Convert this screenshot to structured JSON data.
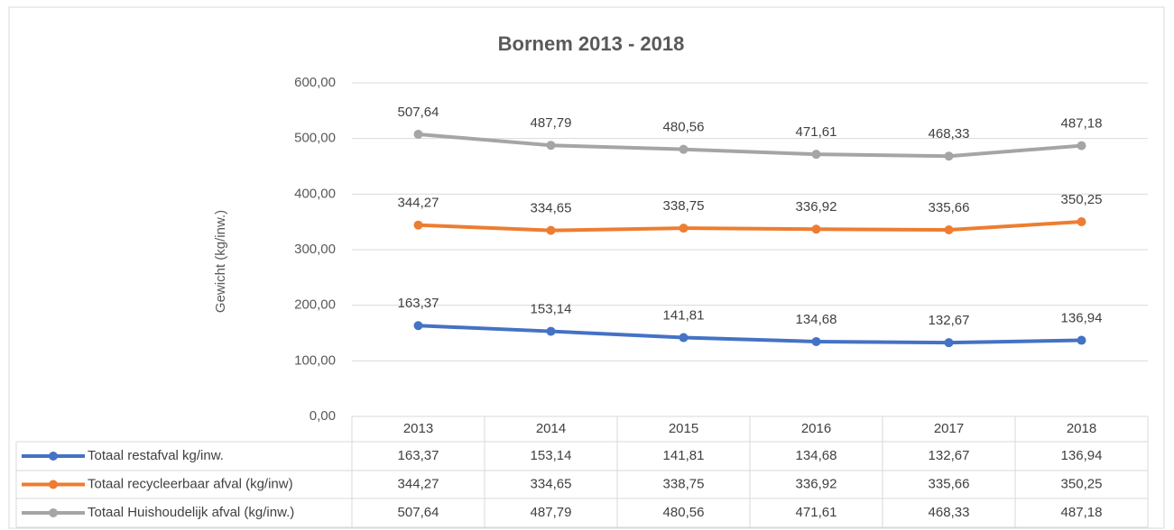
{
  "chart_data": {
    "type": "line",
    "title": "Bornem 2013 - 2018",
    "y_label": "Gewicht (kg/inw.)",
    "categories": [
      "2013",
      "2014",
      "2015",
      "2016",
      "2017",
      "2018"
    ],
    "ylim": [
      0,
      600
    ],
    "yticks": [
      {
        "value": 0,
        "label": "0,00"
      },
      {
        "value": 100,
        "label": "100,00"
      },
      {
        "value": 200,
        "label": "200,00"
      },
      {
        "value": 300,
        "label": "300,00"
      },
      {
        "value": 400,
        "label": "400,00"
      },
      {
        "value": 500,
        "label": "500,00"
      },
      {
        "value": 600,
        "label": "600,00"
      }
    ],
    "grid": true,
    "series": [
      {
        "name": "Totaal restafval kg/inw.",
        "color": "#4472c4",
        "values": [
          163.37,
          153.14,
          141.81,
          134.68,
          132.67,
          136.94
        ],
        "value_labels": [
          "163,37",
          "153,14",
          "141,81",
          "134,68",
          "132,67",
          "136,94"
        ]
      },
      {
        "name": "Totaal recycleerbaar afval (kg/inw)",
        "color": "#ed7d31",
        "values": [
          344.27,
          334.65,
          338.75,
          336.92,
          335.66,
          350.25
        ],
        "value_labels": [
          "344,27",
          "334,65",
          "338,75",
          "336,92",
          "335,66",
          "350,25"
        ]
      },
      {
        "name": "Totaal Huishoudelijk afval (kg/inw.)",
        "color": "#a5a5a5",
        "values": [
          507.64,
          487.79,
          480.56,
          471.61,
          468.33,
          487.18
        ],
        "value_labels": [
          "507,64",
          "487,79",
          "480,56",
          "471,61",
          "468,33",
          "487,18"
        ]
      }
    ]
  }
}
